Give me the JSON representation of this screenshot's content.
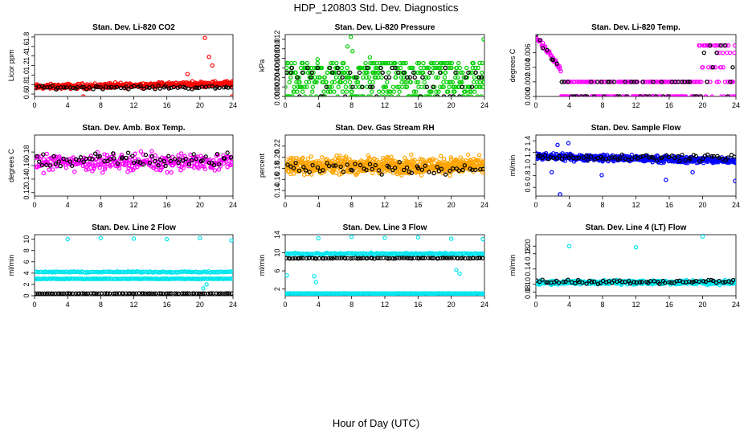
{
  "main_title": "HDP_120803  Std. Dev. Diagnostics",
  "x_axis_label": "Hour of Day (UTC)",
  "colors": {
    "co2": "#ff0000",
    "pressure": "#00cc00",
    "temp": "#ff00ff",
    "box_temp": "#ff00ff",
    "rh": "#ffa500",
    "sample_flow": "#0000ff",
    "line_flow": "#00e5ee",
    "overlay": "#000000"
  },
  "chart_data": [
    {
      "id": "co2",
      "type": "scatter",
      "title": "Stan. Dev. Li-820 CO2",
      "ylabel": "Licor ppm",
      "xlim": [
        0,
        24
      ],
      "ylim": [
        0.55,
        1.85
      ],
      "xticks": [
        "0",
        "4",
        "8",
        "12",
        "16",
        "20",
        "24"
      ],
      "yticks": [
        "0.6",
        "0.8",
        "1.0",
        "1.2",
        "1.4",
        "1.6",
        "1.8"
      ],
      "color_key": "co2",
      "series": [
        {
          "name": "main",
          "pattern": "band",
          "center": 0.75,
          "spread": 0.08,
          "count": 360,
          "trend": 0.003
        },
        {
          "name": "outliers",
          "points": [
            [
              20.6,
              1.78
            ],
            [
              21.1,
              1.38
            ],
            [
              21.5,
              1.2
            ],
            [
              5.9,
              0.55
            ],
            [
              18.5,
              1.02
            ],
            [
              23.9,
              0.55
            ]
          ]
        },
        {
          "name": "overlay",
          "pattern": "band",
          "center": 0.74,
          "spread": 0.05,
          "count": 70,
          "color_key": "overlay"
        }
      ]
    },
    {
      "id": "pressure",
      "type": "scatter",
      "title": "Stan. Dev. Li-820 Pressure",
      "ylabel": "kPa",
      "xlim": [
        0,
        24
      ],
      "ylim": [
        0,
        0.013
      ],
      "xticks": [
        "0",
        "4",
        "8",
        "12",
        "16",
        "20",
        "24"
      ],
      "yticks": [
        "0.000",
        "0.002",
        "0.004",
        "0.006",
        "0.008",
        "0.010",
        "0.012"
      ],
      "color_key": "pressure",
      "series": [
        {
          "name": "main",
          "pattern": "levels",
          "levels": [
            0,
            0.001,
            0.002,
            0.003,
            0.004,
            0.005,
            0.006,
            0.007
          ],
          "count": 420
        },
        {
          "name": "outliers",
          "points": [
            [
              7.9,
              0.0125
            ],
            [
              23.9,
              0.012
            ],
            [
              7.5,
              0.0105
            ],
            [
              8.1,
              0.0095
            ],
            [
              10.2,
              0.0082
            ],
            [
              3.9,
              0.0078
            ]
          ]
        },
        {
          "name": "overlay",
          "pattern": "levels",
          "levels": [
            0,
            0.002,
            0.004,
            0.005,
            0.006
          ],
          "count": 60,
          "color_key": "overlay"
        }
      ]
    },
    {
      "id": "temp",
      "type": "scatter",
      "title": "Stan. Dev. Li-820 Temp.",
      "ylabel": "degrees C",
      "xlim": [
        0,
        24
      ],
      "ylim": [
        0,
        0.0085
      ],
      "xticks": [
        "0",
        "4",
        "8",
        "12",
        "16",
        "20",
        "24"
      ],
      "yticks": [
        "0.000",
        "0.002",
        "0.004",
        "0.006"
      ],
      "color_key": "temp",
      "series": [
        {
          "name": "main",
          "pattern": "decay",
          "count": 300
        },
        {
          "name": "overlay",
          "pattern": "decay",
          "count": 60,
          "color_key": "overlay"
        }
      ]
    },
    {
      "id": "box_temp",
      "type": "scatter",
      "title": "Stan. Dev. Amb. Box Temp.",
      "ylabel": "degrees C",
      "xlim": [
        0,
        24
      ],
      "ylim": [
        0.115,
        0.205
      ],
      "xticks": [
        "0",
        "4",
        "8",
        "12",
        "16",
        "20",
        "24"
      ],
      "yticks": [
        "0.12",
        "0.14",
        "0.16",
        "0.18"
      ],
      "color_key": "box_temp",
      "series": [
        {
          "name": "main",
          "pattern": "band",
          "center": 0.165,
          "spread": 0.018,
          "count": 320
        },
        {
          "name": "overlay",
          "pattern": "band",
          "center": 0.168,
          "spread": 0.015,
          "count": 70,
          "color_key": "overlay"
        }
      ]
    },
    {
      "id": "rh",
      "type": "scatter",
      "title": "Stan. Dev. Gas Stream RH",
      "ylabel": "percent",
      "xlim": [
        0,
        24
      ],
      "ylim": [
        0.13,
        0.24
      ],
      "xticks": [
        "0",
        "4",
        "8",
        "12",
        "16",
        "20",
        "24"
      ],
      "yticks": [
        "0.14",
        "0.16",
        "0.18",
        "0.20",
        "0.22"
      ],
      "color_key": "rh",
      "series": [
        {
          "name": "main",
          "pattern": "band",
          "center": 0.185,
          "spread": 0.022,
          "count": 650
        },
        {
          "name": "overlay",
          "pattern": "band",
          "center": 0.18,
          "spread": 0.015,
          "count": 60,
          "color_key": "overlay"
        }
      ]
    },
    {
      "id": "sample_flow",
      "type": "scatter",
      "title": "Stan. Dev. Sample Flow",
      "ylabel": "ml/min",
      "xlim": [
        0,
        24
      ],
      "ylim": [
        0.45,
        1.5
      ],
      "xticks": [
        "0",
        "4",
        "8",
        "12",
        "16",
        "20",
        "24"
      ],
      "yticks": [
        "0.6",
        "0.8",
        "1.0",
        "1.2",
        "1.4"
      ],
      "color_key": "sample_flow",
      "series": [
        {
          "name": "main",
          "pattern": "band",
          "center": 1.13,
          "spread": 0.08,
          "count": 520,
          "trend": -0.003
        },
        {
          "name": "outliers",
          "points": [
            [
              2.9,
              0.48
            ],
            [
              23.9,
              0.71
            ],
            [
              15.6,
              0.73
            ],
            [
              7.9,
              0.81
            ],
            [
              1.9,
              0.86
            ],
            [
              18.8,
              0.86
            ],
            [
              2.6,
              1.33
            ],
            [
              3.9,
              1.36
            ]
          ]
        },
        {
          "name": "overlay",
          "pattern": "band",
          "center": 1.12,
          "spread": 0.08,
          "count": 70,
          "color_key": "overlay"
        }
      ]
    },
    {
      "id": "line2_flow",
      "type": "scatter",
      "title": "Stan. Dev. Line 2 Flow",
      "ylabel": "ml/min",
      "xlim": [
        0,
        24
      ],
      "ylim": [
        0,
        10.8
      ],
      "xticks": [
        "0",
        "4",
        "8",
        "12",
        "16",
        "20",
        "24"
      ],
      "yticks": [
        "0",
        "2",
        "4",
        "6",
        "8",
        "10"
      ],
      "color_key": "line_flow",
      "series": [
        {
          "name": "upper",
          "pattern": "band",
          "center": 4.2,
          "spread": 0.15,
          "count": 150
        },
        {
          "name": "middle",
          "pattern": "band",
          "center": 3.0,
          "spread": 0.1,
          "count": 200
        },
        {
          "name": "spikes",
          "points": [
            [
              4.0,
              10.0
            ],
            [
              8.0,
              10.2
            ],
            [
              12.0,
              10.1
            ],
            [
              16.0,
              10.0
            ],
            [
              20.0,
              10.2
            ],
            [
              23.8,
              9.8
            ],
            [
              20.4,
              1.3
            ],
            [
              20.8,
              2.0
            ]
          ]
        },
        {
          "name": "overlay",
          "pattern": "band",
          "center": 0.4,
          "spread": 0.04,
          "count": 90,
          "color_key": "overlay"
        }
      ]
    },
    {
      "id": "line3_flow",
      "type": "scatter",
      "title": "Stan. Dev. Line 3 Flow",
      "ylabel": "ml/min",
      "xlim": [
        0,
        24
      ],
      "ylim": [
        0.5,
        14
      ],
      "xticks": [
        "0",
        "4",
        "8",
        "12",
        "16",
        "20",
        "24"
      ],
      "yticks": [
        "2",
        "6",
        "10",
        "14"
      ],
      "color_key": "line_flow",
      "series": [
        {
          "name": "upper",
          "pattern": "band",
          "center": 9.8,
          "spread": 0.25,
          "count": 170
        },
        {
          "name": "base",
          "pattern": "band",
          "center": 1.0,
          "spread": 0.08,
          "count": 260
        },
        {
          "name": "spikes",
          "points": [
            [
              4.0,
              13.2
            ],
            [
              8.0,
              13.5
            ],
            [
              12.0,
              13.3
            ],
            [
              16.0,
              13.4
            ],
            [
              20.0,
              13.1
            ],
            [
              23.8,
              13.0
            ],
            [
              3.5,
              4.8
            ],
            [
              3.7,
              3.5
            ],
            [
              0.2,
              5.0
            ],
            [
              20.6,
              6.2
            ],
            [
              21.0,
              5.4
            ]
          ]
        },
        {
          "name": "overlay",
          "pattern": "band",
          "center": 8.8,
          "spread": 0.12,
          "count": 90,
          "color_key": "overlay"
        }
      ]
    },
    {
      "id": "line4_flow",
      "type": "scatter",
      "title": "Stan. Dev. Line 4 (LT) Flow",
      "ylabel": "ml/min",
      "xlim": [
        0,
        24
      ],
      "ylim": [
        0.07,
        0.23
      ],
      "xticks": [
        "0",
        "4",
        "8",
        "12",
        "16",
        "20",
        "24"
      ],
      "yticks": [
        "0.08",
        "0.10",
        "0.14",
        "0.18",
        "0.20"
      ],
      "color_key": "line_flow",
      "series": [
        {
          "name": "main",
          "pattern": "band",
          "center": 0.105,
          "spread": 0.008,
          "count": 460
        },
        {
          "name": "spikes",
          "points": [
            [
              4.0,
              0.2
            ],
            [
              12.0,
              0.197
            ],
            [
              20.0,
              0.225
            ]
          ]
        },
        {
          "name": "overlay",
          "pattern": "band",
          "center": 0.107,
          "spread": 0.008,
          "count": 70,
          "color_key": "overlay"
        }
      ]
    }
  ]
}
